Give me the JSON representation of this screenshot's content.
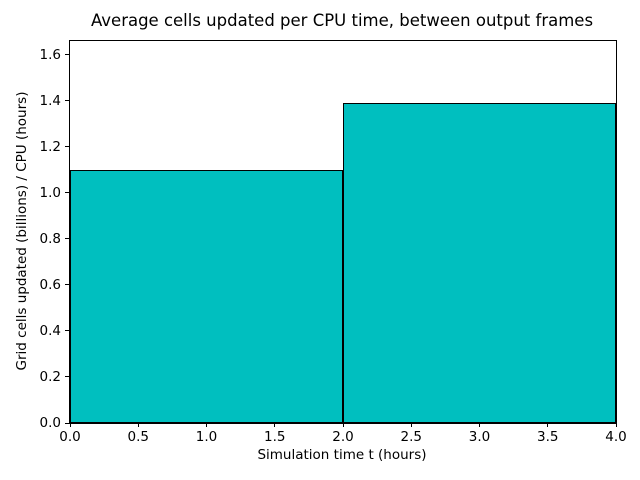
{
  "chart_data": {
    "type": "bar",
    "title": "Average cells updated per CPU time, between output frames",
    "xlabel": "Simulation time t (hours)",
    "ylabel": "Grid cells updated (billions) / CPU (hours)",
    "bins": [
      {
        "range": [
          0.0,
          2.0
        ],
        "value": 1.1
      },
      {
        "range": [
          2.0,
          4.0
        ],
        "value": 1.39
      }
    ],
    "x_tick_labels": [
      "0.0",
      "0.5",
      "1.0",
      "1.5",
      "2.0",
      "2.5",
      "3.0",
      "3.5",
      "4.0"
    ],
    "y_tick_labels": [
      "0.0",
      "0.2",
      "0.4",
      "0.6",
      "0.8",
      "1.0",
      "1.2",
      "1.4",
      "1.6"
    ],
    "xlim": [
      0.0,
      4.0
    ],
    "ylim": [
      0.0,
      1.66
    ],
    "bar_fill_color": "#00bfbf",
    "bar_edge_color": "#000000",
    "background_color": "#ffffff",
    "grid": false,
    "legend": null
  }
}
